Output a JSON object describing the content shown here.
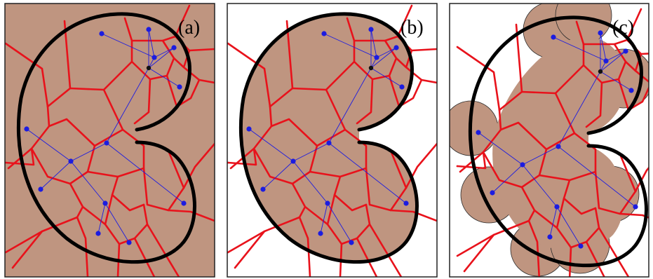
{
  "colors": {
    "fill": "#bf9580",
    "voronoi": "#e8121b",
    "tree": "#1c1ce0",
    "root": "#111111",
    "boundary": "#000000"
  },
  "panels": [
    {
      "label": "(a)",
      "variant": "full-fill"
    },
    {
      "label": "(b)",
      "variant": "shape-fill"
    },
    {
      "label": "(c)",
      "variant": "disc-fill"
    }
  ]
}
